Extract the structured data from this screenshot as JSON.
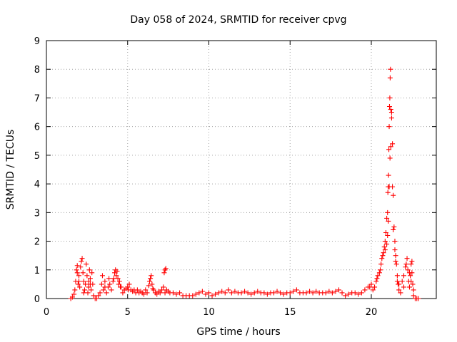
{
  "chart_data": {
    "type": "scatter",
    "title": "Day 058 of 2024, SRMTID for receiver cpvg",
    "xlabel": "GPS time / hours",
    "ylabel": "SRMTID / TECUs",
    "xlim": [
      0,
      24
    ],
    "ylim": [
      0,
      9
    ],
    "xticks": [
      "0",
      "5",
      "10",
      "15",
      "20"
    ],
    "yticks": [
      "0",
      "1",
      "2",
      "3",
      "4",
      "5",
      "6",
      "7",
      "8",
      "9"
    ],
    "grid": true,
    "marker": "+",
    "marker_color": "#ff0000",
    "series": [
      {
        "name": "SRMTID",
        "points": [
          [
            1.5,
            0.0
          ],
          [
            1.6,
            0.05
          ],
          [
            1.7,
            0.15
          ],
          [
            1.75,
            0.3
          ],
          [
            1.8,
            0.6
          ],
          [
            1.85,
            1.0
          ],
          [
            1.9,
            1.15
          ],
          [
            1.95,
            0.5
          ],
          [
            2.0,
            0.8
          ],
          [
            2.05,
            0.4
          ],
          [
            2.1,
            1.1
          ],
          [
            2.15,
            1.3
          ],
          [
            2.2,
            1.4
          ],
          [
            2.25,
            0.9
          ],
          [
            2.3,
            0.6
          ],
          [
            2.35,
            0.3
          ],
          [
            2.4,
            0.5
          ],
          [
            2.45,
            1.2
          ],
          [
            2.5,
            0.8
          ],
          [
            2.55,
            0.2
          ],
          [
            2.6,
            0.4
          ],
          [
            2.65,
            1.0
          ],
          [
            2.7,
            0.7
          ],
          [
            2.75,
            0.3
          ],
          [
            2.8,
            0.9
          ],
          [
            2.85,
            0.5
          ],
          [
            2.9,
            0.1
          ],
          [
            3.0,
            0.0
          ],
          [
            3.1,
            0.0
          ],
          [
            3.2,
            0.1
          ],
          [
            3.3,
            0.2
          ],
          [
            3.4,
            0.5
          ],
          [
            3.45,
            0.8
          ],
          [
            3.5,
            0.3
          ],
          [
            3.6,
            0.6
          ],
          [
            3.7,
            0.2
          ],
          [
            3.8,
            0.4
          ],
          [
            3.85,
            0.7
          ],
          [
            3.9,
            0.5
          ],
          [
            4.0,
            0.3
          ],
          [
            4.1,
            0.6
          ],
          [
            4.2,
            0.9
          ],
          [
            4.25,
            1.0
          ],
          [
            4.3,
            0.8
          ],
          [
            4.35,
            0.95
          ],
          [
            4.4,
            0.7
          ],
          [
            4.5,
            0.6
          ],
          [
            4.6,
            0.4
          ],
          [
            4.7,
            0.2
          ],
          [
            4.8,
            0.3
          ],
          [
            4.9,
            0.35
          ],
          [
            5.0,
            0.4
          ],
          [
            5.1,
            0.5
          ],
          [
            5.2,
            0.3
          ],
          [
            5.3,
            0.25
          ],
          [
            5.4,
            0.3
          ],
          [
            5.5,
            0.2
          ],
          [
            5.6,
            0.3
          ],
          [
            5.7,
            0.2
          ],
          [
            5.8,
            0.25
          ],
          [
            5.9,
            0.2
          ],
          [
            6.0,
            0.15
          ],
          [
            6.1,
            0.3
          ],
          [
            6.2,
            0.2
          ],
          [
            6.3,
            0.45
          ],
          [
            6.4,
            0.7
          ],
          [
            6.45,
            0.8
          ],
          [
            6.5,
            0.5
          ],
          [
            6.6,
            0.3
          ],
          [
            6.7,
            0.2
          ],
          [
            6.8,
            0.15
          ],
          [
            6.9,
            0.25
          ],
          [
            7.0,
            0.2
          ],
          [
            7.1,
            0.3
          ],
          [
            7.2,
            0.4
          ],
          [
            7.25,
            0.9
          ],
          [
            7.3,
            1.0
          ],
          [
            7.35,
            1.05
          ],
          [
            7.4,
            0.3
          ],
          [
            7.5,
            0.25
          ],
          [
            7.6,
            0.2
          ],
          [
            7.8,
            0.2
          ],
          [
            8.0,
            0.15
          ],
          [
            8.2,
            0.2
          ],
          [
            8.4,
            0.1
          ],
          [
            8.6,
            0.1
          ],
          [
            8.8,
            0.1
          ],
          [
            9.0,
            0.1
          ],
          [
            9.2,
            0.15
          ],
          [
            9.4,
            0.2
          ],
          [
            9.6,
            0.25
          ],
          [
            9.8,
            0.15
          ],
          [
            10.0,
            0.2
          ],
          [
            10.2,
            0.1
          ],
          [
            10.4,
            0.15
          ],
          [
            10.6,
            0.2
          ],
          [
            10.8,
            0.25
          ],
          [
            11.0,
            0.2
          ],
          [
            11.2,
            0.3
          ],
          [
            11.4,
            0.2
          ],
          [
            11.6,
            0.25
          ],
          [
            11.8,
            0.2
          ],
          [
            12.0,
            0.2
          ],
          [
            12.2,
            0.25
          ],
          [
            12.4,
            0.2
          ],
          [
            12.6,
            0.15
          ],
          [
            12.8,
            0.2
          ],
          [
            13.0,
            0.25
          ],
          [
            13.2,
            0.2
          ],
          [
            13.4,
            0.2
          ],
          [
            13.6,
            0.15
          ],
          [
            13.8,
            0.2
          ],
          [
            14.0,
            0.2
          ],
          [
            14.2,
            0.25
          ],
          [
            14.4,
            0.2
          ],
          [
            14.6,
            0.15
          ],
          [
            14.8,
            0.2
          ],
          [
            15.0,
            0.2
          ],
          [
            15.2,
            0.25
          ],
          [
            15.4,
            0.3
          ],
          [
            15.6,
            0.2
          ],
          [
            15.8,
            0.2
          ],
          [
            16.0,
            0.2
          ],
          [
            16.2,
            0.25
          ],
          [
            16.4,
            0.2
          ],
          [
            16.6,
            0.25
          ],
          [
            16.8,
            0.2
          ],
          [
            17.0,
            0.2
          ],
          [
            17.2,
            0.2
          ],
          [
            17.4,
            0.25
          ],
          [
            17.6,
            0.2
          ],
          [
            17.8,
            0.25
          ],
          [
            18.0,
            0.3
          ],
          [
            18.2,
            0.2
          ],
          [
            18.4,
            0.1
          ],
          [
            18.6,
            0.15
          ],
          [
            18.8,
            0.2
          ],
          [
            19.0,
            0.2
          ],
          [
            19.2,
            0.15
          ],
          [
            19.4,
            0.2
          ],
          [
            19.6,
            0.3
          ],
          [
            19.8,
            0.4
          ],
          [
            20.0,
            0.5
          ],
          [
            20.1,
            0.3
          ],
          [
            20.2,
            0.4
          ],
          [
            20.3,
            0.6
          ],
          [
            20.4,
            0.8
          ],
          [
            20.5,
            0.9
          ],
          [
            20.6,
            1.2
          ],
          [
            20.7,
            1.5
          ],
          [
            20.75,
            1.6
          ],
          [
            20.8,
            1.8
          ],
          [
            20.85,
            2.0
          ],
          [
            20.9,
            2.3
          ],
          [
            20.95,
            2.8
          ],
          [
            21.0,
            3.0
          ],
          [
            21.02,
            3.7
          ],
          [
            21.04,
            3.9
          ],
          [
            21.06,
            4.3
          ],
          [
            21.08,
            5.2
          ],
          [
            21.1,
            6.0
          ],
          [
            21.12,
            6.7
          ],
          [
            21.14,
            7.0
          ],
          [
            21.16,
            7.7
          ],
          [
            21.18,
            8.0
          ],
          [
            21.2,
            6.6
          ],
          [
            21.25,
            6.3
          ],
          [
            21.3,
            5.4
          ],
          [
            21.35,
            3.6
          ],
          [
            21.4,
            2.5
          ],
          [
            21.45,
            2.0
          ],
          [
            21.5,
            1.5
          ],
          [
            21.55,
            1.2
          ],
          [
            21.6,
            0.8
          ],
          [
            21.65,
            0.5
          ],
          [
            21.7,
            0.3
          ],
          [
            21.8,
            0.2
          ],
          [
            21.9,
            0.6
          ],
          [
            22.0,
            0.8
          ],
          [
            22.1,
            1.1
          ],
          [
            22.15,
            1.2
          ],
          [
            22.2,
            1.4
          ],
          [
            22.25,
            1.0
          ],
          [
            22.3,
            0.6
          ],
          [
            22.35,
            0.4
          ],
          [
            22.4,
            0.8
          ],
          [
            22.45,
            1.2
          ],
          [
            22.5,
            1.3
          ],
          [
            22.55,
            0.5
          ],
          [
            22.6,
            0.1
          ],
          [
            22.7,
            0.0
          ],
          [
            22.8,
            0.0
          ],
          [
            22.9,
            0.0
          ],
          [
            1.9,
            0.9
          ],
          [
            2.0,
            0.6
          ],
          [
            2.3,
            0.2
          ],
          [
            2.6,
            0.6
          ],
          [
            2.7,
            0.5
          ],
          [
            3.6,
            0.4
          ],
          [
            4.15,
            0.7
          ],
          [
            4.45,
            0.5
          ],
          [
            4.55,
            0.4
          ],
          [
            5.05,
            0.3
          ],
          [
            6.35,
            0.6
          ],
          [
            6.55,
            0.35
          ],
          [
            7.3,
            0.2
          ],
          [
            19.9,
            0.4
          ],
          [
            20.35,
            0.7
          ],
          [
            20.55,
            1.0
          ],
          [
            20.65,
            1.4
          ],
          [
            20.85,
            1.7
          ],
          [
            20.95,
            1.9
          ],
          [
            21.0,
            2.2
          ],
          [
            21.05,
            2.7
          ],
          [
            21.1,
            3.9
          ],
          [
            21.15,
            4.9
          ],
          [
            21.2,
            5.3
          ],
          [
            21.25,
            6.5
          ],
          [
            21.3,
            3.9
          ],
          [
            21.35,
            2.4
          ],
          [
            21.45,
            1.7
          ],
          [
            21.5,
            1.3
          ],
          [
            21.6,
            0.6
          ],
          [
            21.7,
            0.5
          ],
          [
            22.0,
            0.4
          ],
          [
            22.35,
            0.9
          ],
          [
            22.45,
            0.6
          ],
          [
            22.5,
            0.9
          ],
          [
            22.6,
            0.3
          ]
        ]
      }
    ]
  }
}
